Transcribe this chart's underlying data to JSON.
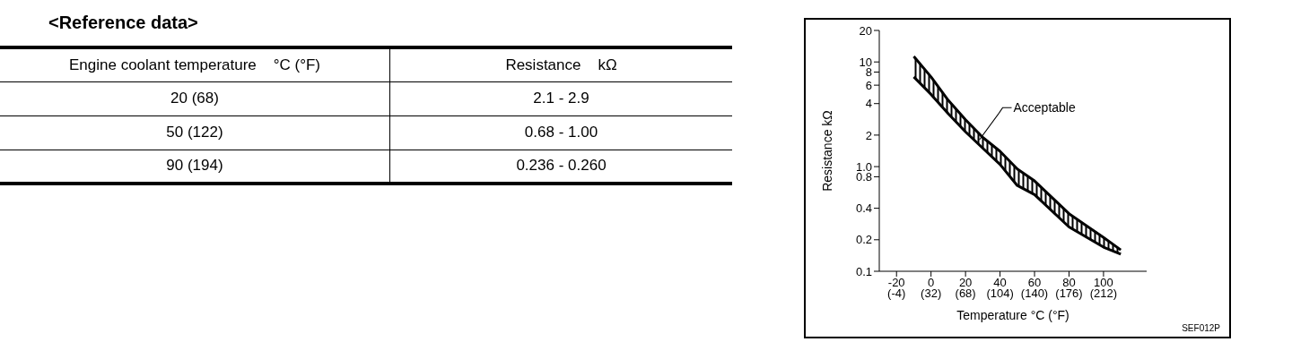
{
  "chart_data": [
    {
      "type": "other",
      "title": "<Reference data>",
      "annotations": [
        "Engine coolant temperature    °C (°F)",
        "Resistance    kΩ",
        "20 (68)",
        "2.1 - 2.9",
        "50 (122)",
        "0.68 - 1.00",
        "90 (194)",
        "0.236 - 0.260"
      ]
    },
    {
      "type": "line",
      "xlabel": "Temperature °C (°F)",
      "ylabel": "Resistance  kΩ",
      "x": [
        -10,
        0,
        10,
        20,
        30,
        40,
        50,
        60,
        80,
        100,
        110
      ],
      "series": [
        {
          "color": "#000000",
          "values": [
            11.3,
            7.2,
            4.3,
            2.8,
            1.9,
            1.4,
            0.95,
            0.73,
            0.355,
            0.21,
            0.16
          ],
          "lower": [
            7.2,
            4.9,
            3.2,
            2.15,
            1.5,
            1.05,
            0.66,
            0.54,
            0.265,
            0.17,
            0.146
          ],
          "upper": [
            11.3,
            7.2,
            4.3,
            2.8,
            1.9,
            1.4,
            0.95,
            0.73,
            0.355,
            0.21,
            0.16
          ]
        },
        {
          "color": "#000000",
          "values": [
            7.2,
            4.9,
            3.2,
            2.15,
            1.5,
            1.05,
            0.66,
            0.54,
            0.265,
            0.17,
            0.146
          ]
        }
      ],
      "log": "y",
      "grid": false,
      "xlim": [
        -30,
        125
      ],
      "xticks": [
        -20,
        0,
        20,
        40,
        60,
        80,
        100
      ],
      "x2lim": [
        -22,
        257
      ],
      "x2ticks": [
        {
          "value": -4,
          "label": "(-4)"
        },
        {
          "value": 32,
          "label": "(32)"
        },
        {
          "value": 68,
          "label": "(68)"
        },
        {
          "value": 104,
          "label": "(104)"
        },
        {
          "value": 140,
          "label": "(140)"
        },
        {
          "value": 176,
          "label": "(176)"
        },
        {
          "value": 212,
          "label": "(212)"
        }
      ],
      "ylim": [
        0.1,
        20
      ],
      "yticks": [
        0.1,
        0.2,
        0.4,
        0.8,
        {
          "value": 1,
          "label": "1.0"
        },
        2,
        4,
        6,
        8,
        10,
        20
      ],
      "annotations": [
        {
          "text": "Acceptable",
          "x": 28,
          "y": 1.8
        },
        "SEF012P"
      ]
    }
  ]
}
